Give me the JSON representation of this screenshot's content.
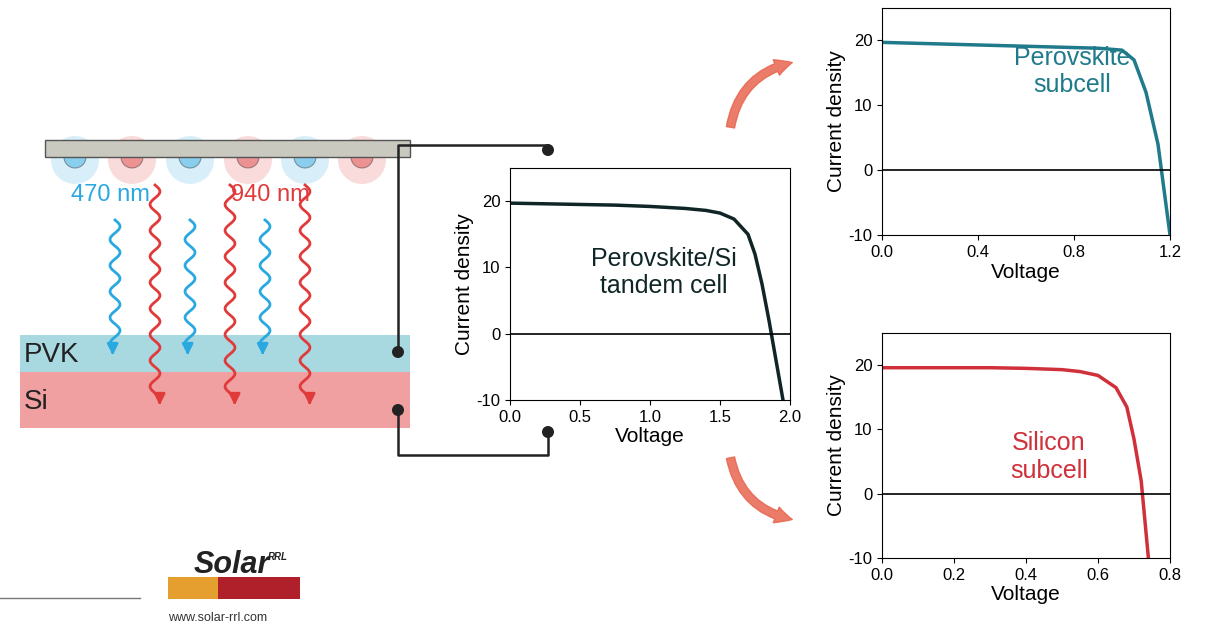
{
  "schematic": {
    "light_sources": [
      {
        "label": "470 nm",
        "color": "#2aa8e0"
      },
      {
        "label": "940 nm",
        "color": "#e03a3a"
      }
    ],
    "layers": [
      {
        "label": "PVK",
        "color": "#a8d8e0"
      },
      {
        "label": "Si",
        "color": "#f0a0a0"
      }
    ],
    "logo": {
      "name": "Solar",
      "superscript": "RRL",
      "url": "www.solar-rrl.com"
    }
  },
  "chart_data": [
    {
      "type": "line",
      "annotation": "Perovskite/Si\ntandem cell",
      "x_label": "Voltage",
      "y_label": "Current density",
      "color": "#102626",
      "x": [
        0,
        0.25,
        0.5,
        0.75,
        1.0,
        1.25,
        1.4,
        1.5,
        1.6,
        1.7,
        1.75,
        1.8,
        1.85,
        1.9,
        1.95
      ],
      "values": [
        19.7,
        19.6,
        19.5,
        19.4,
        19.2,
        18.9,
        18.6,
        18.2,
        17.3,
        15,
        12,
        7.5,
        2,
        -4,
        -10
      ],
      "xlim": [
        0,
        2.0
      ],
      "xticks": [
        {
          "value": 0,
          "label": "0.0"
        },
        {
          "value": 0.5,
          "label": "0.5"
        },
        {
          "value": 1.0,
          "label": "1.0"
        },
        {
          "value": 1.5,
          "label": "1.5"
        },
        {
          "value": 2.0,
          "label": "2.0"
        }
      ],
      "ylim": [
        -10,
        25
      ],
      "yticks": [
        -10,
        0,
        10,
        20
      ]
    },
    {
      "type": "line",
      "annotation": "Perovskite\nsubcell",
      "x_label": "Voltage",
      "y_label": "Current density",
      "color": "#1f7a8c",
      "x": [
        0,
        0.2,
        0.4,
        0.6,
        0.8,
        0.9,
        1.0,
        1.05,
        1.1,
        1.15,
        1.2
      ],
      "values": [
        19.7,
        19.5,
        19.3,
        19.1,
        18.9,
        18.8,
        18.5,
        17,
        12,
        4,
        -10
      ],
      "xlim": [
        0,
        1.2
      ],
      "xticks": [
        {
          "value": 0,
          "label": "0.0"
        },
        {
          "value": 0.4,
          "label": "0.4"
        },
        {
          "value": 0.8,
          "label": "0.8"
        },
        {
          "value": 1.2,
          "label": "1.2"
        }
      ],
      "ylim": [
        -10,
        25
      ],
      "yticks": [
        -10,
        0,
        10,
        20
      ]
    },
    {
      "type": "line",
      "annotation": "Silicon\nsubcell",
      "x_label": "Voltage",
      "y_label": "Current density",
      "color": "#d0303a",
      "x": [
        0,
        0.1,
        0.2,
        0.3,
        0.4,
        0.5,
        0.55,
        0.6,
        0.65,
        0.68,
        0.7,
        0.72,
        0.74
      ],
      "values": [
        19.6,
        19.6,
        19.6,
        19.6,
        19.5,
        19.3,
        19,
        18.4,
        16.5,
        13.5,
        8.5,
        2,
        -10
      ],
      "xlim": [
        0,
        0.8
      ],
      "xticks": [
        {
          "value": 0,
          "label": "0.0"
        },
        {
          "value": 0.2,
          "label": "0.2"
        },
        {
          "value": 0.4,
          "label": "0.4"
        },
        {
          "value": 0.6,
          "label": "0.6"
        },
        {
          "value": 0.8,
          "label": "0.8"
        }
      ],
      "ylim": [
        -10,
        25
      ],
      "yticks": [
        -10,
        0,
        10,
        20
      ]
    }
  ]
}
